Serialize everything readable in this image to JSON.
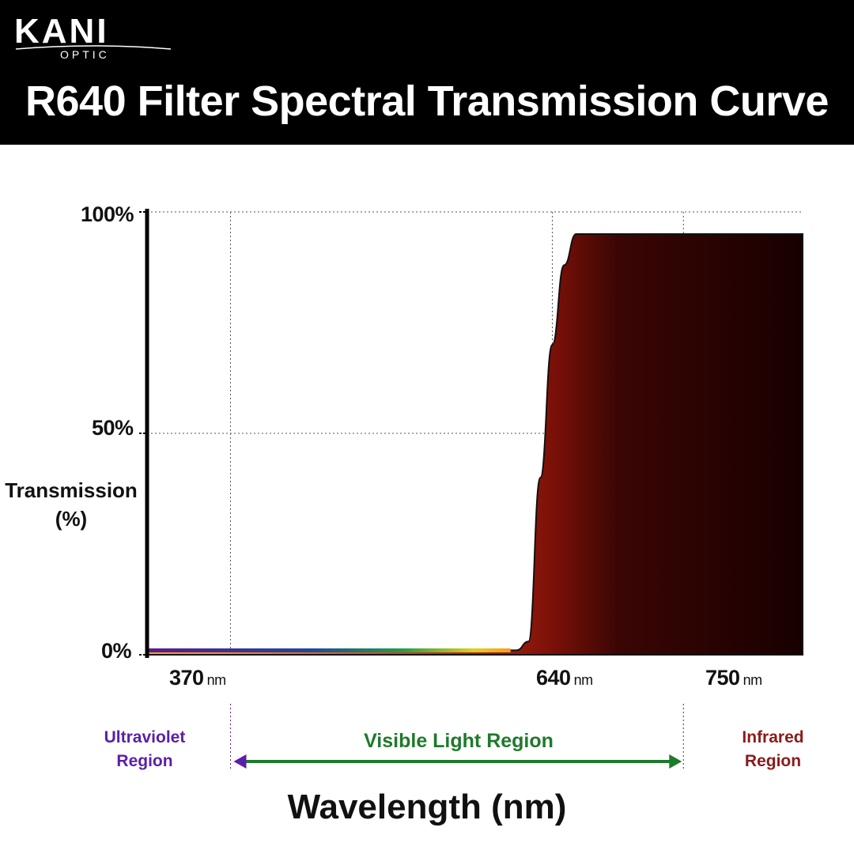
{
  "brand": {
    "name": "KANI",
    "sub": "OPTIC"
  },
  "header": {
    "title": "R640 Filter Spectral Transmission Curve"
  },
  "chart_data": {
    "type": "area",
    "title": "R640 Filter Spectral Transmission Curve",
    "xlabel": "Wavelength (nm)",
    "ylabel": "Transmission (%)",
    "ylabel_lines": [
      "Transmission",
      "(%)"
    ],
    "y_ticks": [
      "100%",
      "50%",
      "0%"
    ],
    "x_ticks": [
      {
        "value": "370",
        "unit": "nm"
      },
      {
        "value": "640",
        "unit": "nm"
      },
      {
        "value": "750",
        "unit": "nm"
      }
    ],
    "xlim": [
      300,
      850
    ],
    "ylim": [
      0,
      100
    ],
    "grid": true,
    "series": [
      {
        "x": [
          300,
          600,
          610,
          620,
          630,
          640,
          650,
          660,
          850
        ],
        "y": [
          1,
          1,
          1,
          3,
          40,
          70,
          88,
          95,
          95
        ]
      }
    ],
    "regions": [
      {
        "label_lines": [
          "Ultraviolet",
          "Region"
        ],
        "color": "#5a1fa8"
      },
      {
        "label": "Visible Light Region",
        "color": "#1f7a2b"
      },
      {
        "label_lines": [
          "Infrared",
          "Region"
        ],
        "color": "#8b1a1a"
      }
    ]
  }
}
